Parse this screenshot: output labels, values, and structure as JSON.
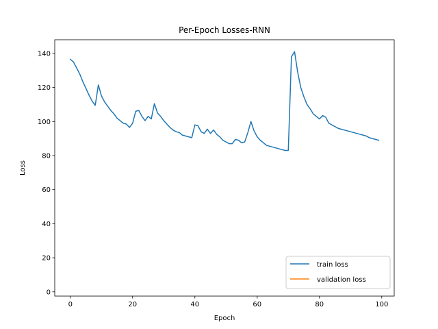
{
  "chart_data": {
    "type": "line",
    "title": "Per-Epoch Losses-RNN",
    "xlabel": "Epoch",
    "ylabel": "Loss",
    "xlim": [
      -5,
      104
    ],
    "ylim": [
      -2.5,
      148
    ],
    "xticks": [
      0,
      20,
      40,
      60,
      80,
      100
    ],
    "yticks": [
      0,
      20,
      40,
      60,
      80,
      100,
      120,
      140
    ],
    "grid": false,
    "legend_position": "lower right",
    "series": [
      {
        "name": "train loss",
        "color": "#1f77b4",
        "x": [
          0,
          1,
          2,
          3,
          4,
          5,
          6,
          7,
          8,
          9,
          10,
          11,
          12,
          13,
          14,
          15,
          16,
          17,
          18,
          19,
          20,
          21,
          22,
          23,
          24,
          25,
          26,
          27,
          28,
          29,
          30,
          31,
          32,
          33,
          34,
          35,
          36,
          37,
          38,
          39,
          40,
          41,
          42,
          43,
          44,
          45,
          46,
          47,
          48,
          49,
          50,
          51,
          52,
          53,
          54,
          55,
          56,
          57,
          58,
          59,
          60,
          61,
          62,
          63,
          64,
          65,
          66,
          67,
          68,
          69,
          70,
          71,
          72,
          73,
          74,
          75,
          76,
          77,
          78,
          79,
          80,
          81,
          82,
          83,
          84,
          85,
          86,
          87,
          88,
          89,
          90,
          91,
          92,
          93,
          94,
          95,
          96,
          97,
          98,
          99
        ],
        "values": [
          136.5,
          135,
          131.5,
          128,
          123.5,
          119.5,
          115.5,
          112,
          109.5,
          121.5,
          115,
          111.5,
          109,
          106.5,
          104.5,
          102,
          100.5,
          99,
          98.5,
          96.5,
          99,
          106,
          106.5,
          103,
          100.5,
          103,
          101.5,
          110.5,
          105,
          103,
          100.5,
          98.5,
          96.5,
          95,
          94,
          93.5,
          92,
          91.5,
          91,
          90.5,
          98,
          97.5,
          94,
          93,
          95.5,
          93,
          95,
          92.5,
          91,
          89,
          88,
          87,
          87,
          89.5,
          89,
          87.5,
          88,
          93.5,
          100,
          94.5,
          91,
          89,
          87.5,
          86,
          85.5,
          85,
          84.5,
          84,
          83.5,
          83,
          83,
          138,
          141,
          129,
          120,
          114.5,
          110,
          107.5,
          104.5,
          103,
          101.5,
          103.5,
          102.5,
          99,
          98,
          97,
          96,
          95.5,
          95,
          94.5,
          94,
          93.5,
          93,
          92.5,
          92,
          91.5,
          90.5,
          90,
          89.5,
          89
        ]
      },
      {
        "name": "validation loss",
        "color": "#ff7f0e",
        "x": [],
        "values": []
      }
    ]
  }
}
